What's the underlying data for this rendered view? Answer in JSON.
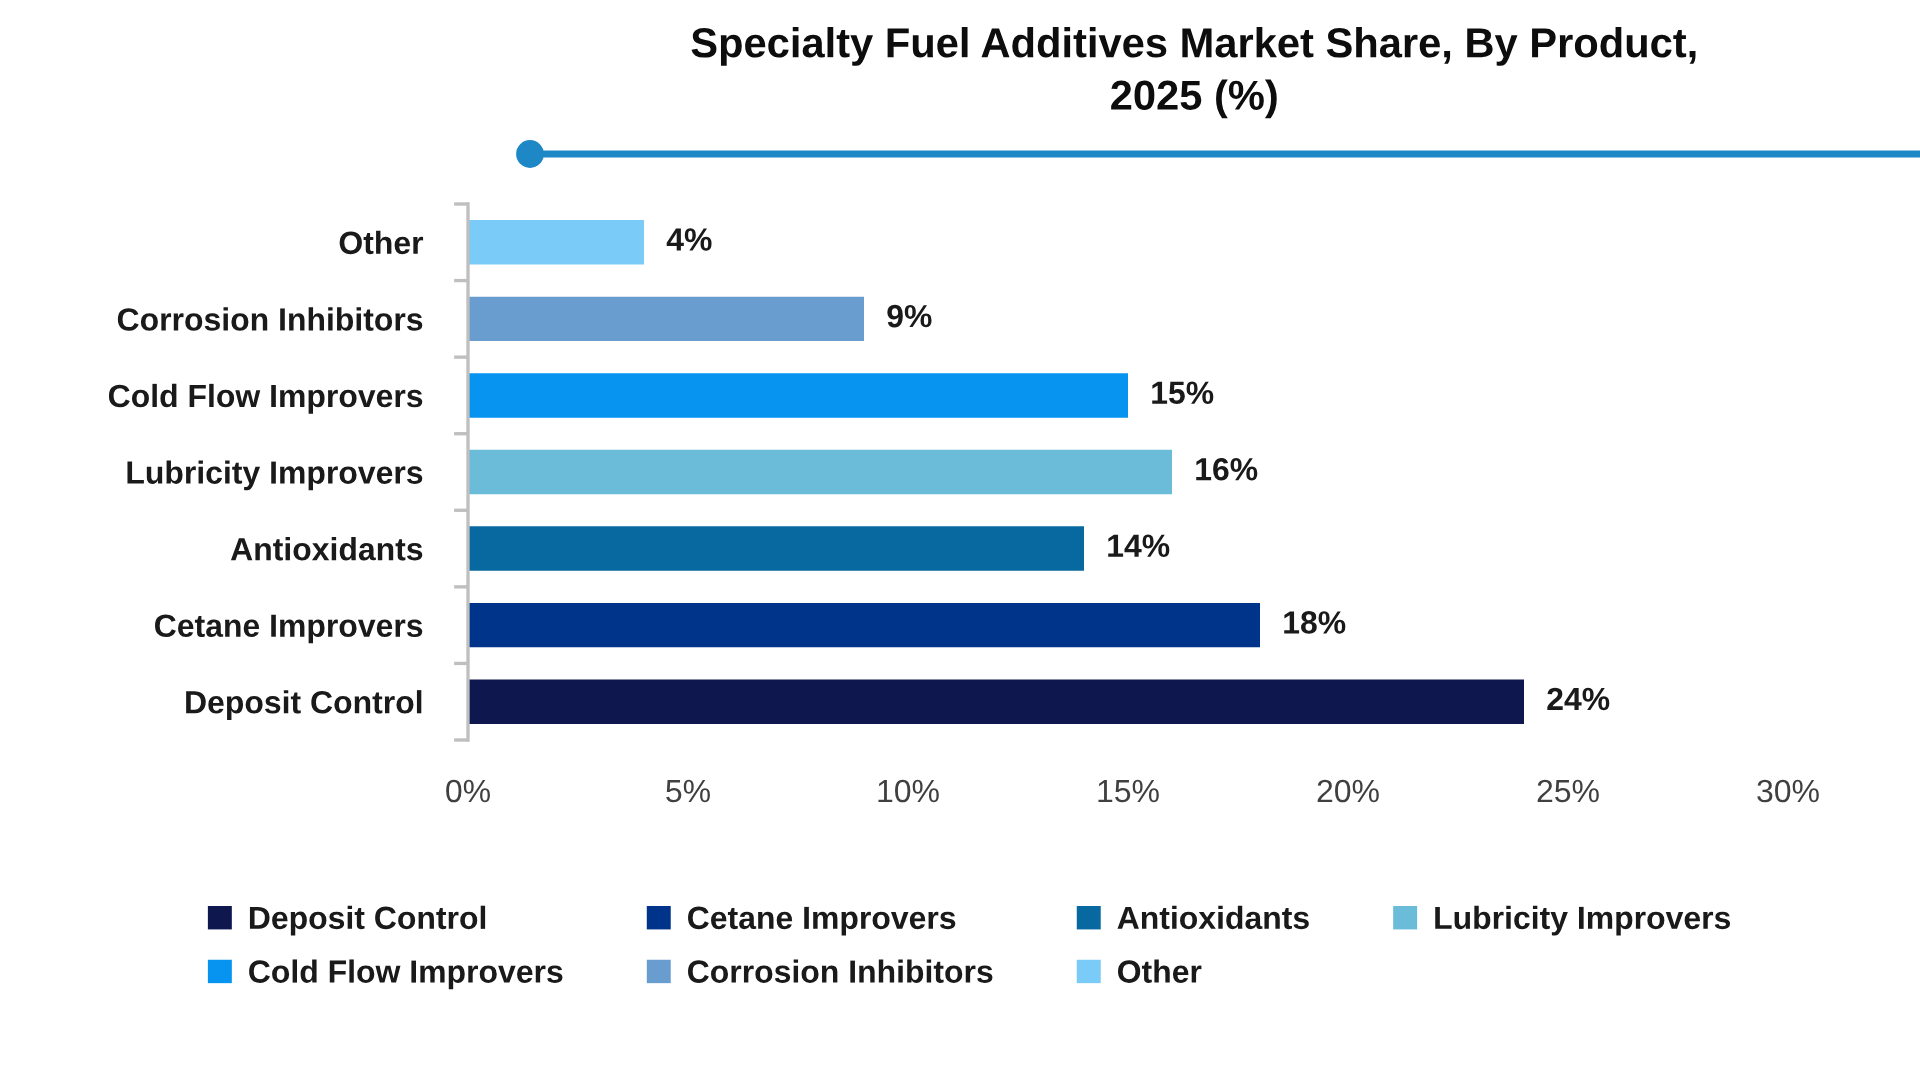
{
  "chart_data": {
    "type": "bar",
    "orientation": "horizontal",
    "stacked": true,
    "title": "Specialty Fuel Additives Market Share, By Product,\n2025 (%)",
    "categories": [
      "Other",
      "Corrosion Inhibitors",
      "Cold Flow Improvers",
      "Lubricity Improvers",
      "Antioxidants",
      "Cetane Improvers",
      "Deposit Control"
    ],
    "series": [
      {
        "name": "Deposit Control",
        "color": "#0f174f",
        "values": [
          null,
          null,
          null,
          null,
          null,
          null,
          24
        ],
        "value_labels": [
          null,
          null,
          null,
          null,
          null,
          null,
          "24%"
        ]
      },
      {
        "name": "Cetane Improvers",
        "color": "#00338a",
        "values": [
          null,
          null,
          null,
          null,
          null,
          18,
          null
        ],
        "value_labels": [
          null,
          null,
          null,
          null,
          null,
          "18%",
          null
        ]
      },
      {
        "name": "Antioxidants",
        "color": "#07699f",
        "values": [
          null,
          null,
          null,
          null,
          14,
          null,
          null
        ],
        "value_labels": [
          null,
          null,
          null,
          null,
          "14%",
          null,
          null
        ]
      },
      {
        "name": "Lubricity Improvers",
        "color": "#6bbcd8",
        "values": [
          null,
          null,
          null,
          16,
          null,
          null,
          null
        ],
        "value_labels": [
          null,
          null,
          null,
          "16%",
          null,
          null,
          null
        ]
      },
      {
        "name": "Cold Flow Improvers",
        "color": "#0694f0",
        "values": [
          null,
          null,
          15,
          null,
          null,
          null,
          null
        ],
        "value_labels": [
          null,
          null,
          "15%",
          null,
          null,
          null,
          null
        ]
      },
      {
        "name": "Corrosion Inhibitors",
        "color": "#699ccf",
        "values": [
          null,
          9,
          null,
          null,
          null,
          null,
          null
        ],
        "value_labels": [
          null,
          "9%",
          null,
          null,
          null,
          null,
          null
        ]
      },
      {
        "name": "Other",
        "color": "#7acbf7",
        "values": [
          4,
          null,
          null,
          null,
          null,
          null,
          null
        ],
        "value_labels": [
          "4%",
          null,
          null,
          null,
          null,
          null,
          null
        ]
      }
    ],
    "xlim": [
      0,
      30
    ],
    "xticks": [
      {
        "value": 0,
        "label": "0%"
      },
      {
        "value": 5,
        "label": "5%"
      },
      {
        "value": 10,
        "label": "10%"
      },
      {
        "value": 15,
        "label": "15%"
      },
      {
        "value": 20,
        "label": "20%"
      },
      {
        "value": 25,
        "label": "25%"
      },
      {
        "value": 30,
        "label": "30%"
      }
    ],
    "legend": "bottom"
  }
}
